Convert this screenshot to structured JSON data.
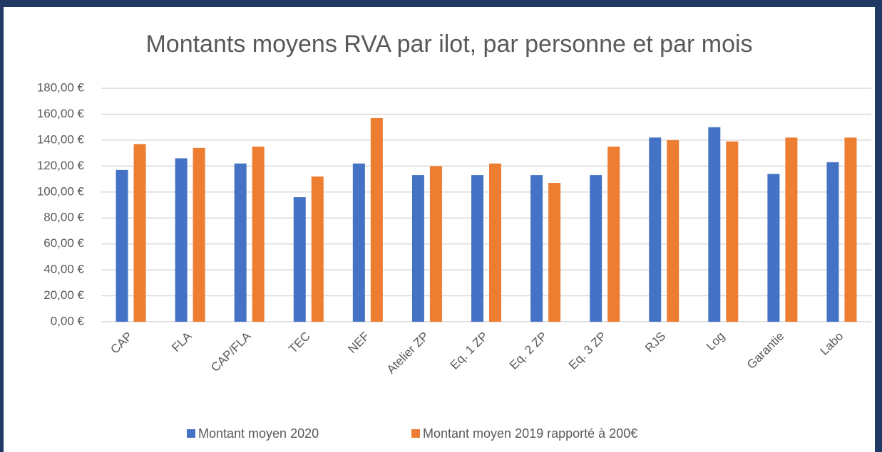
{
  "chart_data": {
    "type": "bar",
    "title": "Montants moyens RVA par ilot, par personne et par mois",
    "categories": [
      "CAP",
      "FLA",
      "CAP/FLA",
      "TEC",
      "NEF",
      "Atelier ZP",
      "Eq. 1 ZP",
      "Eq. 2 ZP",
      "Eq. 3 ZP",
      "RJS",
      "Log",
      "Garantie",
      "Labo"
    ],
    "series": [
      {
        "name": "Montant moyen 2020",
        "color": "#4472c4",
        "values": [
          117,
          126,
          122,
          96,
          122,
          113,
          113,
          113,
          113,
          142,
          150,
          114,
          123
        ]
      },
      {
        "name": "Montant moyen 2019 rapporté à 200€",
        "color": "#ed7d31",
        "values": [
          137,
          134,
          135,
          112,
          157,
          120,
          122,
          107,
          135,
          140,
          139,
          142,
          142
        ]
      }
    ],
    "ylim": [
      0,
      180
    ],
    "yticks": [
      {
        "value": 0,
        "label": "0,00 €"
      },
      {
        "value": 20,
        "label": "20,00 €"
      },
      {
        "value": 40,
        "label": "40,00 €"
      },
      {
        "value": 60,
        "label": "60,00 €"
      },
      {
        "value": 80,
        "label": "80,00 €"
      },
      {
        "value": 100,
        "label": "100,00 €"
      },
      {
        "value": 120,
        "label": "120,00 €"
      },
      {
        "value": 140,
        "label": "140,00 €"
      },
      {
        "value": 160,
        "label": "160,00 €"
      },
      {
        "value": 180,
        "label": "180,00 €"
      }
    ],
    "grid": true,
    "legend": "bottom"
  }
}
